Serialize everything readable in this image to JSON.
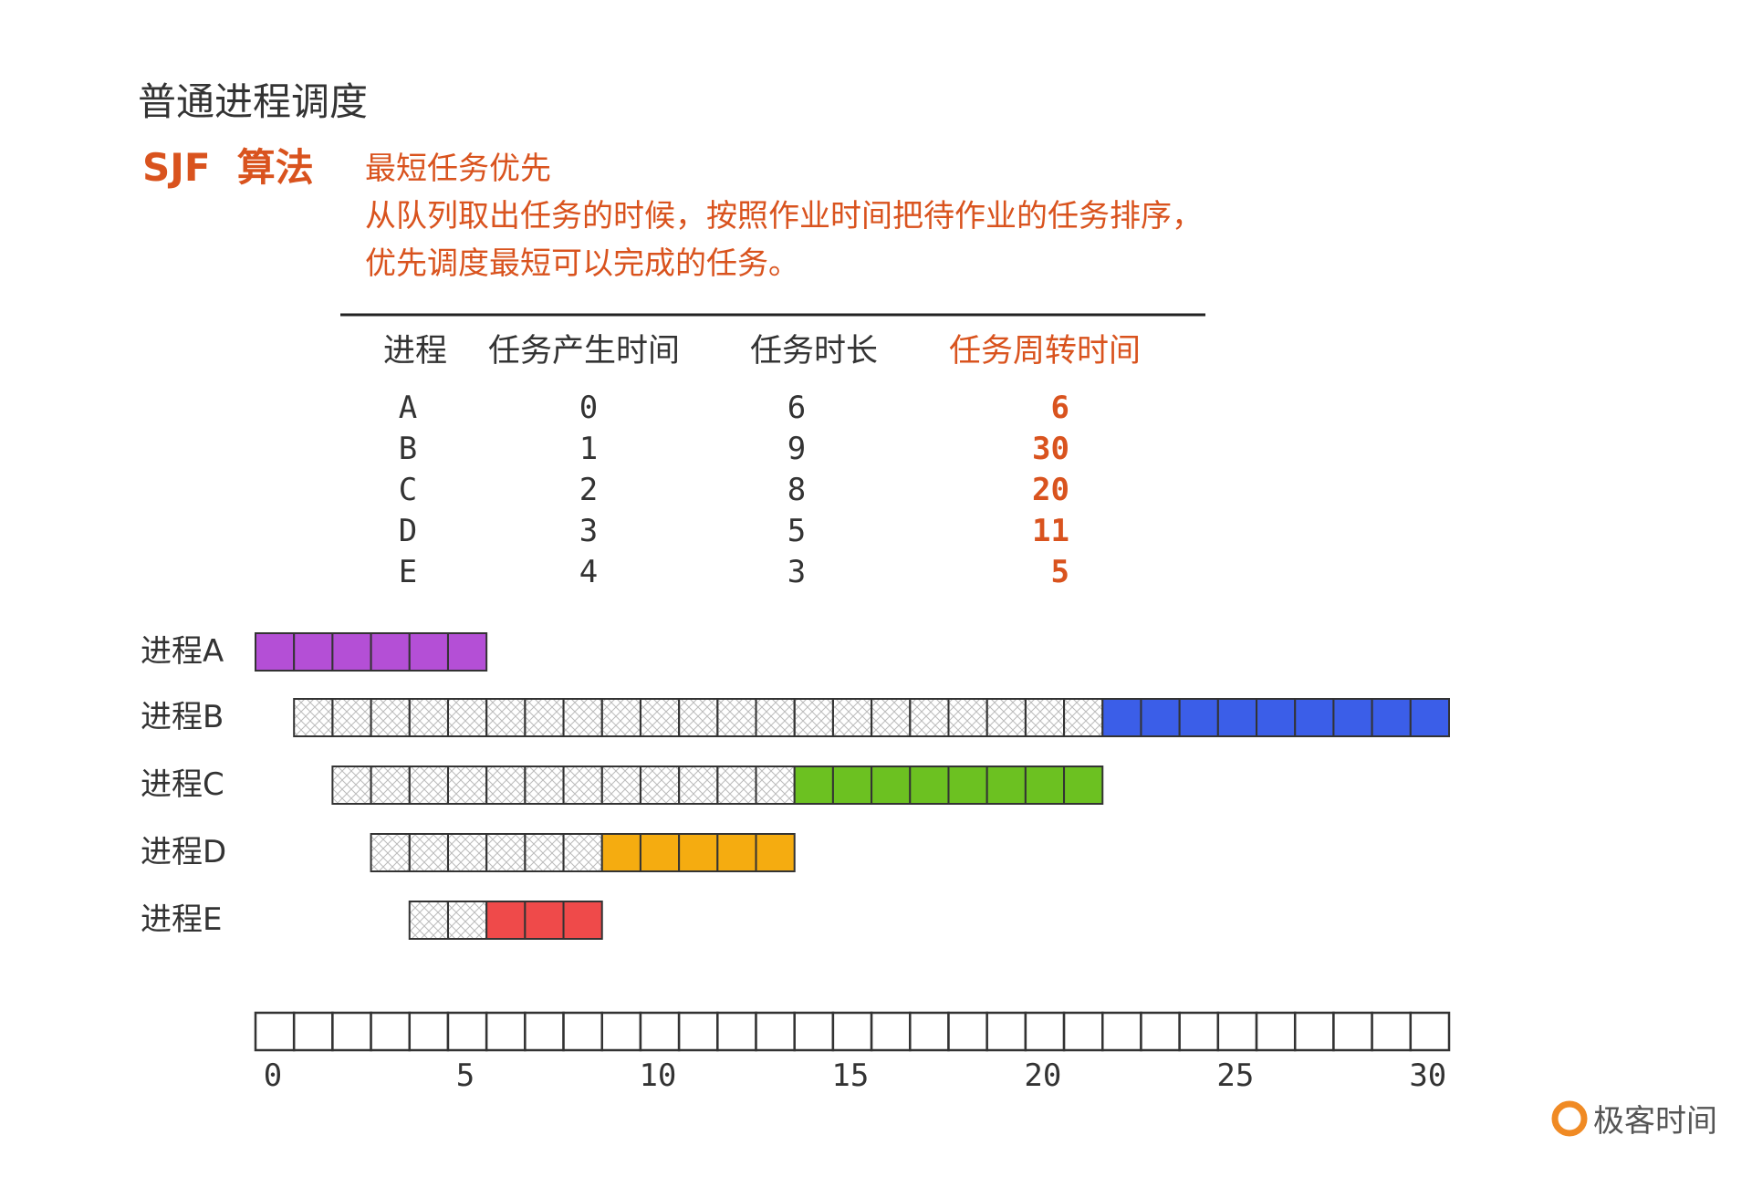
{
  "header": {
    "title": "普通进程调度",
    "algorithm": "SJF  算法",
    "subtitle": "最短任务优先",
    "description": [
      "从队列取出任务的时候，按照作业时间把待作业的任务排序，",
      "优先调度最短可以完成的任务。"
    ]
  },
  "table": {
    "columns": [
      "进程",
      "任务产生时间",
      "任务时长",
      "任务周转时间"
    ],
    "rows": [
      [
        "A",
        0,
        6,
        6
      ],
      [
        "B",
        1,
        9,
        30
      ],
      [
        "C",
        2,
        8,
        20
      ],
      [
        "D",
        3,
        5,
        11
      ],
      [
        "E",
        4,
        3,
        5
      ]
    ]
  },
  "gantt": {
    "labels": [
      "进程A",
      "进程B",
      "进程C",
      "进程D",
      "进程E"
    ],
    "colors": [
      "#b44fd6",
      "#3b5ee8",
      "#6cc121",
      "#f5ac10",
      "#ef4a4a"
    ],
    "xlim": [
      0,
      31
    ],
    "xticks": [
      0,
      5,
      10,
      15,
      20,
      25,
      30
    ]
  },
  "logo": "极客时间"
}
